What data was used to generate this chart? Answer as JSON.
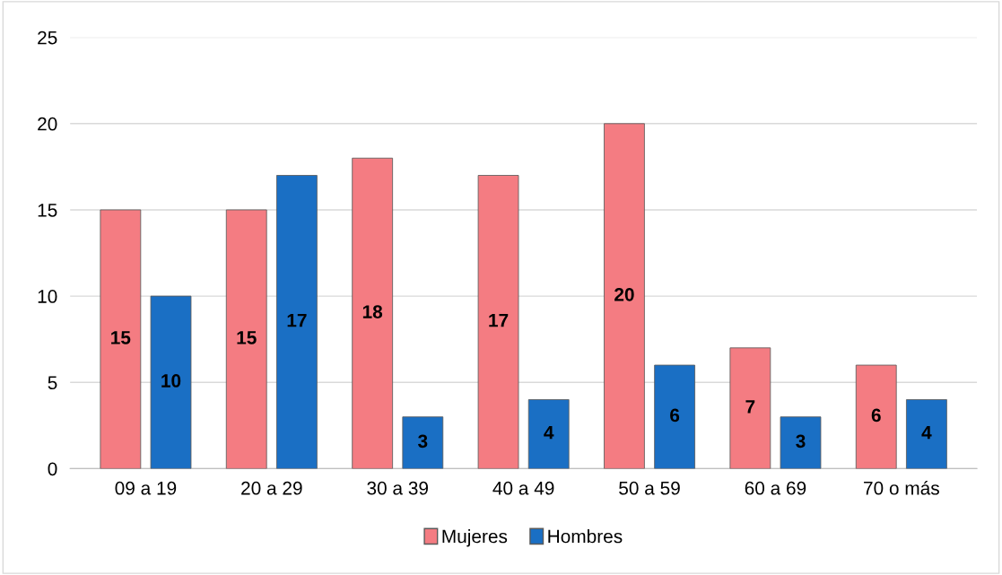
{
  "chart_data": {
    "type": "bar",
    "categories": [
      "09 a 19",
      "20 a 29",
      "30 a 39",
      "40 a 49",
      "50 a 59",
      "60 a 69",
      "70 o más"
    ],
    "series": [
      {
        "name": "Mujeres",
        "color": "#f47c82",
        "values": [
          15,
          15,
          18,
          17,
          20,
          7,
          6
        ]
      },
      {
        "name": "Hombres",
        "color": "#1a6fc4",
        "values": [
          10,
          17,
          3,
          4,
          6,
          3,
          4
        ]
      }
    ],
    "ylim": [
      0,
      25
    ],
    "yticks": [
      0,
      5,
      10,
      15,
      20,
      25
    ],
    "grid": "y",
    "legend": "bottom",
    "data_labels": true
  }
}
